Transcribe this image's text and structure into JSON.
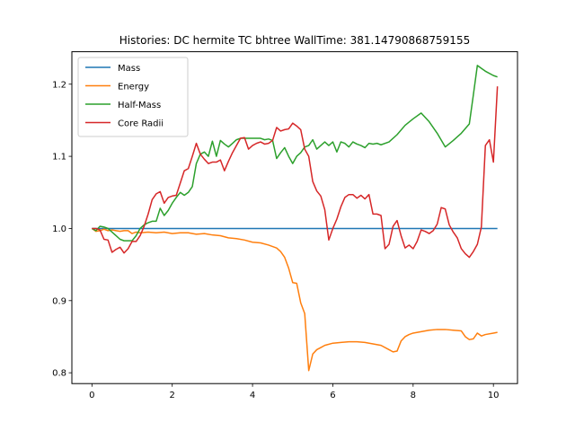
{
  "chart_data": {
    "type": "line",
    "title": "Histories: DC hermite TC bhtree WallTime: 381.14790868759155",
    "xlabel": "",
    "ylabel": "",
    "xlim": [
      -0.5,
      10.6
    ],
    "ylim": [
      0.785,
      1.245
    ],
    "xticks": [
      0,
      2,
      4,
      6,
      8,
      10
    ],
    "yticks": [
      0.8,
      0.9,
      1.0,
      1.1,
      1.2
    ],
    "xtick_labels": [
      "0",
      "2",
      "4",
      "6",
      "8",
      "10"
    ],
    "ytick_labels": [
      "0.8",
      "0.9",
      "1.0",
      "1.1",
      "1.2"
    ],
    "grid": false,
    "legend_position": "top-left",
    "series": [
      {
        "name": "Mass",
        "color": "#1f77b4",
        "x": [
          0,
          10.1
        ],
        "y": [
          1.0,
          1.0
        ]
      },
      {
        "name": "Energy",
        "color": "#ff7f0e",
        "x": [
          0,
          0.1,
          0.2,
          0.3,
          0.4,
          0.5,
          0.6,
          0.7,
          0.8,
          0.9,
          1.0,
          1.1,
          1.2,
          1.4,
          1.6,
          1.8,
          2.0,
          2.2,
          2.4,
          2.6,
          2.8,
          3.0,
          3.2,
          3.4,
          3.6,
          3.8,
          4.0,
          4.2,
          4.4,
          4.6,
          4.7,
          4.8,
          4.9,
          5.0,
          5.1,
          5.2,
          5.3,
          5.4,
          5.5,
          5.6,
          5.7,
          5.8,
          6.0,
          6.2,
          6.4,
          6.6,
          6.8,
          7.0,
          7.2,
          7.4,
          7.5,
          7.6,
          7.7,
          7.8,
          7.9,
          8.0,
          8.2,
          8.4,
          8.6,
          8.8,
          9.0,
          9.2,
          9.3,
          9.4,
          9.5,
          9.6,
          9.7,
          9.8,
          10.0,
          10.1
        ],
        "y": [
          1.0,
          0.996,
          0.997,
          0.999,
          0.997,
          0.998,
          0.997,
          0.996,
          0.997,
          0.997,
          0.993,
          0.995,
          0.994,
          0.995,
          0.994,
          0.995,
          0.993,
          0.994,
          0.994,
          0.992,
          0.993,
          0.991,
          0.99,
          0.987,
          0.986,
          0.984,
          0.981,
          0.98,
          0.977,
          0.973,
          0.968,
          0.96,
          0.945,
          0.925,
          0.924,
          0.897,
          0.882,
          0.803,
          0.826,
          0.832,
          0.835,
          0.838,
          0.841,
          0.842,
          0.843,
          0.843,
          0.842,
          0.84,
          0.838,
          0.832,
          0.829,
          0.83,
          0.844,
          0.85,
          0.853,
          0.855,
          0.857,
          0.859,
          0.86,
          0.86,
          0.859,
          0.858,
          0.85,
          0.846,
          0.847,
          0.855,
          0.851,
          0.853,
          0.855,
          0.856
        ]
      },
      {
        "name": "Half-Mass",
        "color": "#2ca02c",
        "x": [
          0,
          0.1,
          0.2,
          0.3,
          0.4,
          0.5,
          0.6,
          0.7,
          0.8,
          0.9,
          1.0,
          1.1,
          1.2,
          1.3,
          1.4,
          1.5,
          1.6,
          1.7,
          1.8,
          1.9,
          2.0,
          2.1,
          2.2,
          2.3,
          2.4,
          2.5,
          2.6,
          2.7,
          2.8,
          2.9,
          3.0,
          3.1,
          3.2,
          3.3,
          3.4,
          3.5,
          3.6,
          3.7,
          3.8,
          3.9,
          4.0,
          4.1,
          4.2,
          4.3,
          4.4,
          4.5,
          4.6,
          4.7,
          4.8,
          4.9,
          5.0,
          5.1,
          5.2,
          5.3,
          5.4,
          5.5,
          5.6,
          5.7,
          5.8,
          5.9,
          6.0,
          6.1,
          6.2,
          6.3,
          6.4,
          6.5,
          6.6,
          6.7,
          6.8,
          6.9,
          7.0,
          7.1,
          7.2,
          7.4,
          7.6,
          7.8,
          8.0,
          8.2,
          8.4,
          8.6,
          8.8,
          9.0,
          9.2,
          9.4,
          9.5,
          9.6,
          9.7,
          9.8,
          10.0,
          10.1
        ],
        "y": [
          1.0,
          0.997,
          1.003,
          1.002,
          1.0,
          0.995,
          0.99,
          0.985,
          0.983,
          0.983,
          0.983,
          0.99,
          1.0,
          1.005,
          1.008,
          1.01,
          1.01,
          1.028,
          1.018,
          1.025,
          1.035,
          1.043,
          1.05,
          1.046,
          1.05,
          1.058,
          1.09,
          1.103,
          1.106,
          1.1,
          1.121,
          1.1,
          1.122,
          1.117,
          1.113,
          1.118,
          1.123,
          1.125,
          1.125,
          1.125,
          1.125,
          1.125,
          1.125,
          1.123,
          1.124,
          1.122,
          1.097,
          1.105,
          1.112,
          1.1,
          1.09,
          1.1,
          1.105,
          1.113,
          1.115,
          1.123,
          1.11,
          1.115,
          1.12,
          1.115,
          1.12,
          1.106,
          1.12,
          1.118,
          1.113,
          1.12,
          1.117,
          1.115,
          1.112,
          1.118,
          1.117,
          1.118,
          1.116,
          1.12,
          1.13,
          1.143,
          1.152,
          1.16,
          1.148,
          1.132,
          1.113,
          1.122,
          1.132,
          1.145,
          1.185,
          1.226,
          1.222,
          1.218,
          1.212,
          1.21
        ]
      },
      {
        "name": "Core Radii",
        "color": "#d62728",
        "x": [
          0,
          0.1,
          0.2,
          0.3,
          0.4,
          0.5,
          0.6,
          0.7,
          0.8,
          0.9,
          1.0,
          1.1,
          1.2,
          1.3,
          1.4,
          1.5,
          1.6,
          1.7,
          1.8,
          1.9,
          2.0,
          2.1,
          2.2,
          2.3,
          2.4,
          2.5,
          2.6,
          2.7,
          2.8,
          2.9,
          3.0,
          3.1,
          3.2,
          3.3,
          3.4,
          3.5,
          3.6,
          3.7,
          3.8,
          3.9,
          4.0,
          4.1,
          4.2,
          4.3,
          4.4,
          4.5,
          4.6,
          4.7,
          4.8,
          4.9,
          5.0,
          5.1,
          5.2,
          5.3,
          5.4,
          5.5,
          5.6,
          5.7,
          5.8,
          5.9,
          6.0,
          6.1,
          6.2,
          6.3,
          6.4,
          6.5,
          6.6,
          6.7,
          6.8,
          6.9,
          7.0,
          7.1,
          7.2,
          7.3,
          7.4,
          7.5,
          7.6,
          7.7,
          7.8,
          7.9,
          8.0,
          8.1,
          8.2,
          8.3,
          8.4,
          8.5,
          8.6,
          8.7,
          8.8,
          8.9,
          9.0,
          9.1,
          9.2,
          9.3,
          9.4,
          9.5,
          9.6,
          9.7,
          9.8,
          9.9,
          10.0,
          10.1
        ],
        "y": [
          1.0,
          1.0,
          0.998,
          0.985,
          0.984,
          0.967,
          0.971,
          0.974,
          0.966,
          0.972,
          0.982,
          0.982,
          0.99,
          1.003,
          1.02,
          1.04,
          1.048,
          1.051,
          1.035,
          1.043,
          1.045,
          1.046,
          1.063,
          1.08,
          1.083,
          1.1,
          1.118,
          1.103,
          1.096,
          1.09,
          1.092,
          1.092,
          1.095,
          1.08,
          1.093,
          1.105,
          1.115,
          1.125,
          1.126,
          1.11,
          1.115,
          1.118,
          1.12,
          1.117,
          1.118,
          1.122,
          1.14,
          1.135,
          1.137,
          1.138,
          1.146,
          1.142,
          1.137,
          1.11,
          1.1,
          1.065,
          1.052,
          1.045,
          1.026,
          0.984,
          1.0,
          1.013,
          1.03,
          1.043,
          1.047,
          1.047,
          1.042,
          1.046,
          1.041,
          1.047,
          1.02,
          1.02,
          1.018,
          0.972,
          0.978,
          1.003,
          1.011,
          0.99,
          0.973,
          0.977,
          0.972,
          0.982,
          0.998,
          0.996,
          0.993,
          0.997,
          1.006,
          1.029,
          1.027,
          1.005,
          0.995,
          0.987,
          0.972,
          0.965,
          0.96,
          0.968,
          0.978,
          1.002,
          1.115,
          1.123,
          1.092,
          1.197
        ]
      }
    ]
  }
}
